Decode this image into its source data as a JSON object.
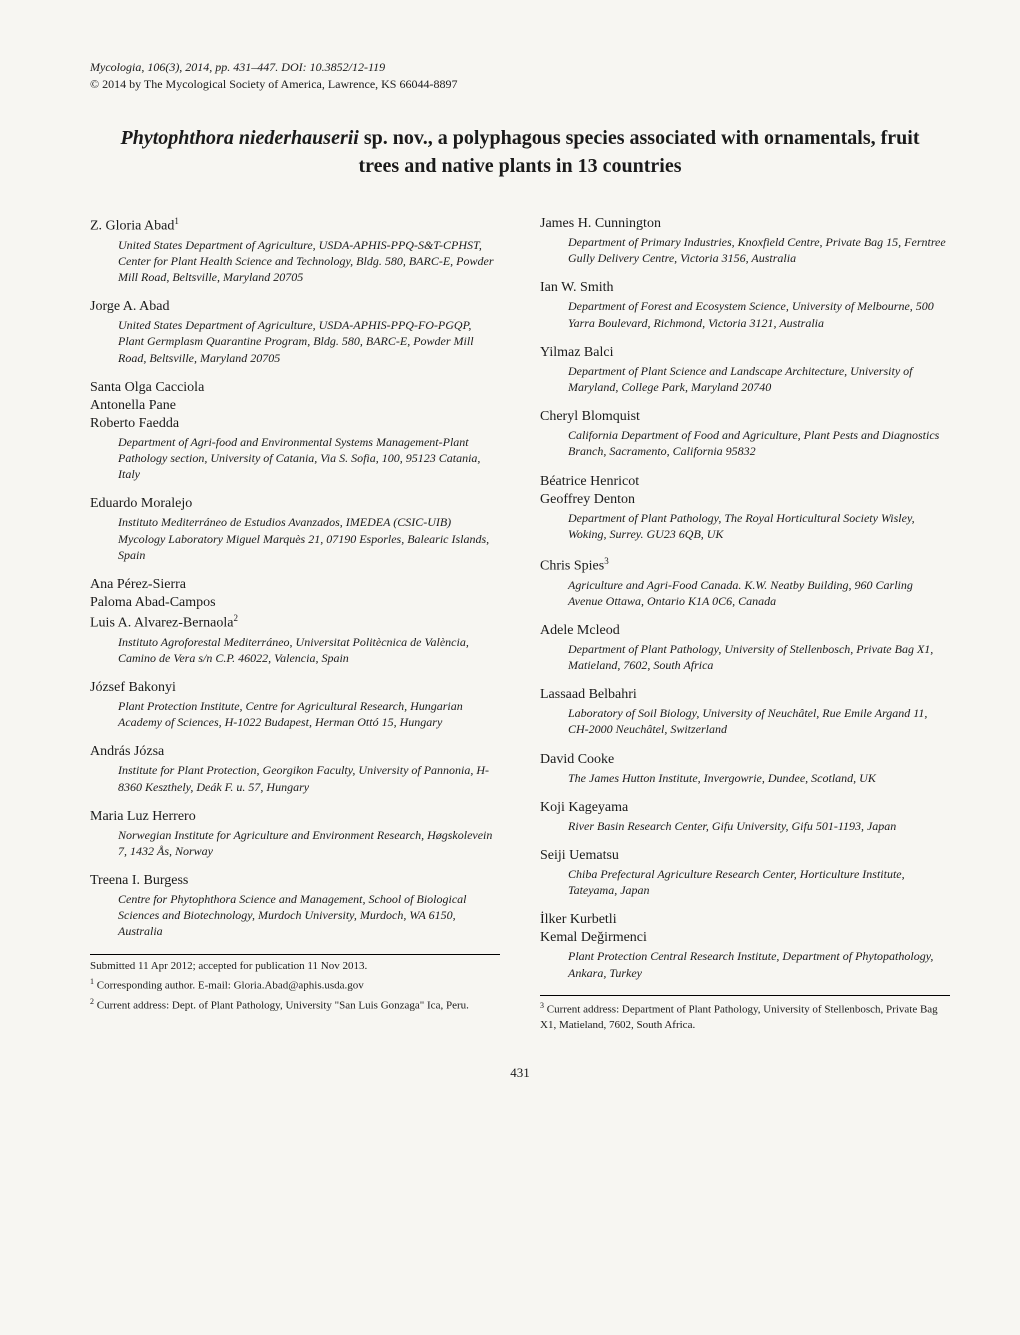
{
  "header": {
    "journal_line": "Mycologia, 106(3), 2014, pp. 431–447. DOI: 10.3852/12-119",
    "copyright_line": "© 2014 by The Mycological Society of America, Lawrence, KS 66044-8897"
  },
  "title": {
    "species": "Phytophthora niederhauserii",
    "rest": " sp. nov., a polyphagous species associated with ornamentals, fruit trees and native plants in 13 countries"
  },
  "left_authors": [
    {
      "name": "Z. Gloria Abad",
      "sup": "1",
      "affiliation": "United States Department of Agriculture, USDA-APHIS-PPQ-S&T-CPHST, Center for Plant Health Science and Technology, Bldg. 580, BARC-E, Powder Mill Road, Beltsville, Maryland 20705"
    },
    {
      "name": "Jorge A. Abad",
      "sup": "",
      "affiliation": "United States Department of Agriculture, USDA-APHIS-PPQ-FO-PGQP, Plant Germplasm Quarantine Program, Bldg. 580, BARC-E, Powder Mill Road, Beltsville, Maryland 20705"
    },
    {
      "name": "Santa Olga Cacciola",
      "sup": "",
      "affiliation": ""
    },
    {
      "name": "Antonella Pane",
      "sup": "",
      "affiliation": ""
    },
    {
      "name": "Roberto Faedda",
      "sup": "",
      "affiliation": "Department of Agri-food and Environmental Systems Management-Plant Pathology section, University of Catania, Via S. Sofia, 100, 95123 Catania, Italy"
    },
    {
      "name": "Eduardo Moralejo",
      "sup": "",
      "affiliation": "Instituto Mediterráneo de Estudios Avanzados, IMEDEA (CSIC-UIB) Mycology Laboratory Miguel Marquès 21, 07190 Esporles, Balearic Islands, Spain"
    },
    {
      "name": "Ana Pérez-Sierra",
      "sup": "",
      "affiliation": ""
    },
    {
      "name": "Paloma Abad-Campos",
      "sup": "",
      "affiliation": ""
    },
    {
      "name": "Luis A. Alvarez-Bernaola",
      "sup": "2",
      "affiliation": "Instituto Agroforestal Mediterráneo, Universitat Politècnica de València, Camino de Vera s/n C.P. 46022, Valencia, Spain"
    },
    {
      "name": "József Bakonyi",
      "sup": "",
      "affiliation": "Plant Protection Institute, Centre for Agricultural Research, Hungarian Academy of Sciences, H-1022 Budapest, Herman Ottó 15, Hungary"
    },
    {
      "name": "András Józsa",
      "sup": "",
      "affiliation": "Institute for Plant Protection, Georgikon Faculty, University of Pannonia, H-8360 Keszthely, Deák F. u. 57, Hungary"
    },
    {
      "name": "Maria Luz Herrero",
      "sup": "",
      "affiliation": "Norwegian Institute for Agriculture and Environment Research, Høgskolevein 7, 1432 Ås, Norway"
    },
    {
      "name": "Treena I. Burgess",
      "sup": "",
      "affiliation": "Centre for Phytophthora Science and Management, School of Biological Sciences and Biotechnology, Murdoch University, Murdoch, WA 6150, Australia"
    }
  ],
  "right_authors": [
    {
      "name": "James H. Cunnington",
      "sup": "",
      "affiliation": "Department of Primary Industries, Knoxfield Centre, Private Bag 15, Ferntree Gully Delivery Centre, Victoria 3156, Australia"
    },
    {
      "name": "Ian W. Smith",
      "sup": "",
      "affiliation": "Department of Forest and Ecosystem Science, University of Melbourne, 500 Yarra Boulevard, Richmond, Victoria 3121, Australia"
    },
    {
      "name": "Yilmaz Balci",
      "sup": "",
      "affiliation": "Department of Plant Science and Landscape Architecture, University of Maryland, College Park, Maryland 20740"
    },
    {
      "name": "Cheryl Blomquist",
      "sup": "",
      "affiliation": "California Department of Food and Agriculture, Plant Pests and Diagnostics Branch, Sacramento, California 95832"
    },
    {
      "name": "Béatrice Henricot",
      "sup": "",
      "affiliation": ""
    },
    {
      "name": "Geoffrey Denton",
      "sup": "",
      "affiliation": "Department of Plant Pathology, The Royal Horticultural Society Wisley, Woking, Surrey. GU23 6QB, UK"
    },
    {
      "name": "Chris Spies",
      "sup": "3",
      "affiliation": "Agriculture and Agri-Food Canada. K.W. Neatby Building, 960 Carling Avenue Ottawa, Ontario K1A 0C6, Canada"
    },
    {
      "name": "Adele Mcleod",
      "sup": "",
      "affiliation": "Department of Plant Pathology, University of Stellenbosch, Private Bag X1, Matieland, 7602, South Africa"
    },
    {
      "name": "Lassaad Belbahri",
      "sup": "",
      "affiliation": "Laboratory of Soil Biology, University of Neuchâtel, Rue Emile Argand 11, CH-2000 Neuchâtel, Switzerland"
    },
    {
      "name": "David Cooke",
      "sup": "",
      "affiliation": "The James Hutton Institute, Invergowrie, Dundee, Scotland, UK"
    },
    {
      "name": "Koji Kageyama",
      "sup": "",
      "affiliation": "River Basin Research Center, Gifu University, Gifu 501-1193, Japan"
    },
    {
      "name": "Seiji Uematsu",
      "sup": "",
      "affiliation": "Chiba Prefectural Agriculture Research Center, Horticulture Institute, Tateyama, Japan"
    },
    {
      "name": "İlker Kurbetli",
      "sup": "",
      "affiliation": ""
    },
    {
      "name": "Kemal Değirmenci",
      "sup": "",
      "affiliation": "Plant Protection Central Research Institute, Department of Phytopathology, Ankara, Turkey"
    }
  ],
  "left_footnotes": [
    {
      "text": "Submitted 11 Apr 2012; accepted for publication 11 Nov 2013.",
      "sup": ""
    },
    {
      "text": "Corresponding author. E-mail: Gloria.Abad@aphis.usda.gov",
      "sup": "1"
    },
    {
      "text": "Current address: Dept. of Plant Pathology, University \"San Luis Gonzaga\" Ica, Peru.",
      "sup": "2"
    }
  ],
  "right_footnotes": [
    {
      "text": "Current address: Department of Plant Pathology, University of Stellenbosch, Private Bag X1, Matieland, 7602, South Africa.",
      "sup": "3"
    }
  ],
  "page_number": "431"
}
